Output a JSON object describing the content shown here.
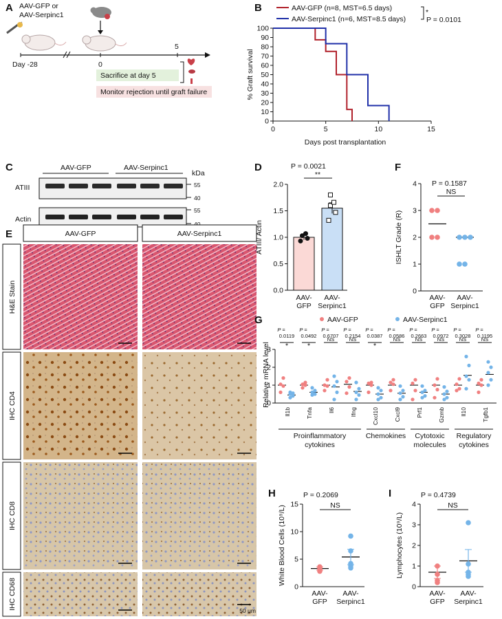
{
  "panels": {
    "A": {
      "letter": "A",
      "donor_label": [
        "AAV-GFP or",
        "AAV-Serpinc1"
      ],
      "day_start": "Day -28",
      "day_zero": "0",
      "day_five": "5",
      "box_sacrifice": "Sacrifice at day 5",
      "box_monitor": "Monitor rejection until graft failure"
    },
    "B": {
      "letter": "B",
      "legend": [
        "AAV-GFP (n=8, MST=6.5 days)",
        "AAV-Serpinc1 (n=6, MST=8.5 days)"
      ],
      "sig_star": "*",
      "p_text": "P = 0.0101"
    },
    "C": {
      "letter": "C",
      "group_gfp": "AAV-GFP",
      "group_serp": "AAV-Serpinc1",
      "kda": "kDa",
      "row1": "ATIII",
      "row2": "Actin",
      "markers1": [
        "55",
        "40"
      ],
      "markers2": [
        "55",
        "40"
      ]
    },
    "D": {
      "letter": "D",
      "p_text": "P = 0.0021",
      "sig": "**"
    },
    "E": {
      "letter": "E",
      "col_headers": [
        "AAV-GFP",
        "AAV-Serpinc1"
      ],
      "row_labels": [
        "H&E Stain",
        "IHC CD4",
        "IHC CD8",
        "IHC CD68"
      ],
      "scale": "50 μm"
    },
    "F": {
      "letter": "F",
      "p_text": "P = 0.1587",
      "sig": "NS"
    },
    "G": {
      "letter": "G",
      "legend": [
        "AAV-GFP",
        "AAV-Serpinc1"
      ],
      "p_prefix": "P =",
      "groups": [
        "Proinflammatory cytokines",
        "Chemokines",
        "Cytotoxic molecules",
        "Regulatory cytokines"
      ]
    },
    "H": {
      "letter": "H",
      "p_text": "P = 0.2069",
      "sig": "NS"
    },
    "I": {
      "letter": "I",
      "p_text": "P = 0.4739",
      "sig": "NS"
    }
  },
  "colors": {
    "gfp": "#b0202a",
    "serp": "#1f2fa8",
    "gfp_dot": "#f08080",
    "serp_dot": "#74b4e8",
    "gfp_bar": "#fbd9d6",
    "serp_bar": "#c9dff6"
  },
  "chart_data": [
    {
      "panel": "B",
      "type": "line",
      "xlabel": "Days post transplantation",
      "ylabel": "% Graft survival",
      "xlim": [
        0,
        15
      ],
      "ylim": [
        0,
        100
      ],
      "xticks": [
        0,
        5,
        10,
        15
      ],
      "yticks": [
        0,
        10,
        20,
        30,
        40,
        50,
        60,
        70,
        80,
        90,
        100
      ],
      "series": [
        {
          "name": "AAV-GFP",
          "steps": [
            [
              0,
              100
            ],
            [
              4,
              100
            ],
            [
              4,
              87.5
            ],
            [
              5,
              87.5
            ],
            [
              5,
              75
            ],
            [
              6,
              75
            ],
            [
              6,
              50
            ],
            [
              7,
              50
            ],
            [
              7,
              12.5
            ],
            [
              7.5,
              12.5
            ],
            [
              7.5,
              0
            ]
          ]
        },
        {
          "name": "AAV-Serpinc1",
          "steps": [
            [
              0,
              100
            ],
            [
              5,
              100
            ],
            [
              5,
              83.3
            ],
            [
              7,
              83.3
            ],
            [
              7,
              50
            ],
            [
              9,
              50
            ],
            [
              9,
              16.7
            ],
            [
              11,
              16.7
            ],
            [
              11,
              0
            ]
          ]
        }
      ]
    },
    {
      "panel": "D",
      "type": "bar",
      "ylabel": "ATIII/ Actin",
      "ylim": [
        0,
        2.0
      ],
      "yticks": [
        0.0,
        0.5,
        1.0,
        1.5,
        2.0
      ],
      "categories": [
        "AAV-GFP",
        "AAV-Serpinc1"
      ],
      "values": [
        1.0,
        1.55
      ],
      "errors": [
        0.05,
        0.1
      ],
      "points": [
        [
          0.93,
          0.98,
          1.03,
          1.07
        ],
        [
          1.32,
          1.47,
          1.6,
          1.66,
          1.8
        ]
      ]
    },
    {
      "panel": "F",
      "type": "scatter",
      "ylabel": "ISHLT Grade (R)",
      "ylim": [
        0,
        4
      ],
      "yticks": [
        0,
        1,
        2,
        3,
        4
      ],
      "categories": [
        "AAV-GFP",
        "AAV-Serpinc1"
      ],
      "means": [
        2.5,
        2.0
      ],
      "points": [
        [
          2,
          2,
          3,
          3
        ],
        [
          1,
          1,
          2,
          2,
          2
        ]
      ]
    },
    {
      "panel": "G",
      "type": "scatter",
      "ylabel": "Relative mRNA level",
      "ylim": [
        0,
        3
      ],
      "yticks": [
        0,
        1,
        2,
        3
      ],
      "categories": [
        "Il1b",
        "Tnfa",
        "Il6",
        "Ifng",
        "Cxcl10",
        "Cxcl9",
        "Prf1",
        "Gzmb",
        "Il10",
        "Tgfb1"
      ],
      "p_values": [
        "0.0119",
        "0.0492",
        "0.6707",
        "0.2154",
        "0.0387",
        "0.0586",
        "0.2663",
        "0.0972",
        "0.3028",
        "0.1195"
      ],
      "sig": [
        "*",
        "*",
        "NS",
        "NS",
        "*",
        "NS",
        "NS",
        "NS",
        "NS",
        "NS"
      ],
      "series": [
        {
          "name": "AAV-GFP",
          "means": [
            1.0,
            1.0,
            1.0,
            1.05,
            1.0,
            1.0,
            1.0,
            1.0,
            1.0,
            1.0
          ],
          "points": [
            [
              0.6,
              0.95,
              1.05,
              1.4
            ],
            [
              0.85,
              1.0,
              1.05,
              1.15
            ],
            [
              0.7,
              0.95,
              1.0,
              1.3
            ],
            [
              0.55,
              0.9,
              1.2,
              1.4
            ],
            [
              0.6,
              1.0,
              1.1,
              1.15
            ],
            [
              0.7,
              1.05,
              1.15,
              1.3
            ],
            [
              0.2,
              0.7,
              1.1,
              1.3
            ],
            [
              0.3,
              0.75,
              1.0,
              1.35
            ],
            [
              0.7,
              0.8,
              1.05,
              1.35
            ],
            [
              0.6,
              1.0,
              1.1,
              1.3
            ]
          ]
        },
        {
          "name": "AAV-Serpinc1",
          "means": [
            0.45,
            0.6,
            0.9,
            0.65,
            0.5,
            0.55,
            0.6,
            0.5,
            1.55,
            1.6
          ],
          "points": [
            [
              0.3,
              0.4,
              0.5,
              0.55,
              0.6
            ],
            [
              0.45,
              0.5,
              0.6,
              0.7,
              0.85
            ],
            [
              0.2,
              0.6,
              0.95,
              1.2,
              1.5
            ],
            [
              0.2,
              0.45,
              0.6,
              0.8,
              1.15
            ],
            [
              0.2,
              0.3,
              0.5,
              0.7,
              0.85
            ],
            [
              0.2,
              0.35,
              0.55,
              0.7,
              0.95
            ],
            [
              0.3,
              0.4,
              0.6,
              0.7,
              0.95
            ],
            [
              0.2,
              0.3,
              0.5,
              0.65,
              0.9
            ],
            [
              0.8,
              1.3,
              1.5,
              2.1,
              2.6
            ],
            [
              1.0,
              1.3,
              1.7,
              2.0,
              2.3
            ]
          ]
        }
      ]
    },
    {
      "panel": "H",
      "type": "scatter",
      "ylabel": "White Blood Cells (10⁹/L)",
      "ylim": [
        0,
        15
      ],
      "yticks": [
        0,
        5,
        10,
        15
      ],
      "categories": [
        "AAV-GFP",
        "AAV-Serpinc1"
      ],
      "means": [
        3.3,
        5.4
      ],
      "errors": [
        0.3,
        1.4
      ],
      "points": [
        [
          2.8,
          3.1,
          3.4,
          3.6
        ],
        [
          3.4,
          3.8,
          4.2,
          6.5,
          9.2
        ]
      ]
    },
    {
      "panel": "I",
      "type": "scatter",
      "ylabel": "Lymphocytes (10⁹/L)",
      "ylim": [
        0,
        4
      ],
      "yticks": [
        0,
        1,
        2,
        3,
        4
      ],
      "categories": [
        "AAV-GFP",
        "AAV-Serpinc1"
      ],
      "means": [
        0.7,
        1.25
      ],
      "errors": [
        0.3,
        0.55
      ],
      "points": [
        [
          0.2,
          0.3,
          0.6,
          1.0
        ],
        [
          0.5,
          0.6,
          0.7,
          1.1,
          3.1
        ]
      ]
    }
  ]
}
